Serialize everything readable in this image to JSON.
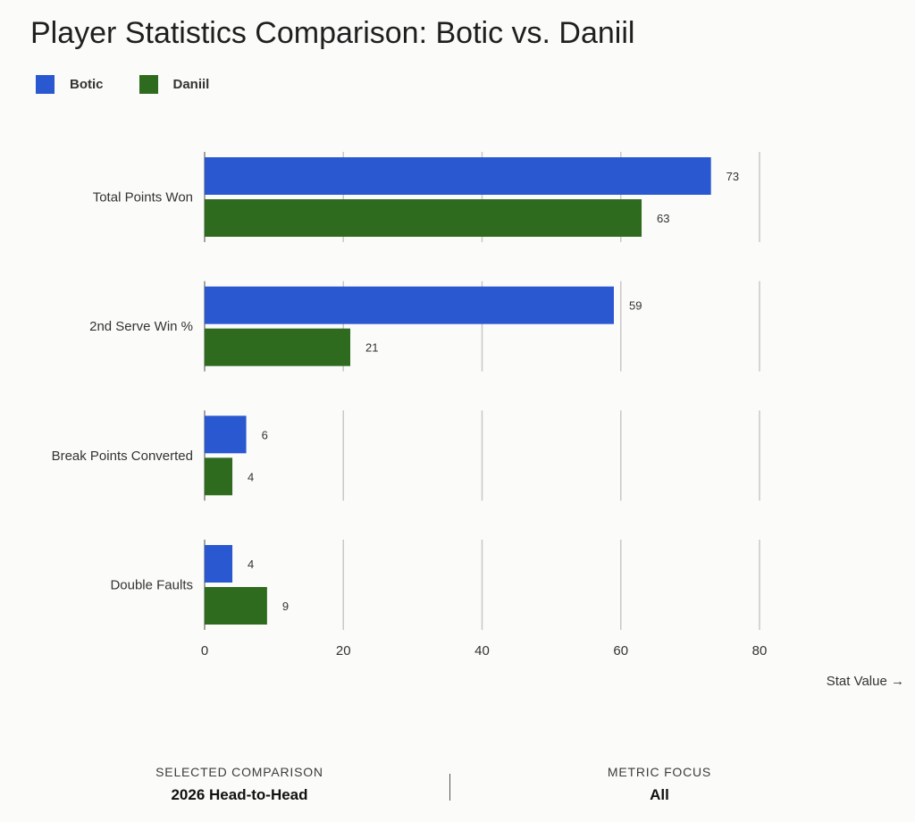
{
  "chart_data": {
    "type": "bar",
    "orientation": "horizontal",
    "title": "Player Statistics Comparison: Botic vs. Daniil",
    "categories": [
      "Total Points Won",
      "2nd Serve Win %",
      "Break Points Converted",
      "Double Faults"
    ],
    "series": [
      {
        "name": "Botic",
        "color": "#2a58d0",
        "values": [
          73,
          59,
          6,
          4
        ]
      },
      {
        "name": "Daniil",
        "color": "#2e6b1f",
        "values": [
          63,
          21,
          4,
          9
        ]
      }
    ],
    "xlim": [
      0,
      80
    ],
    "xticks": [
      "0",
      "20",
      "40",
      "60",
      "80"
    ],
    "xlabel": "Stat Value →",
    "grid": true,
    "legend": "top-left"
  },
  "footer": {
    "left_caption": "SELECTED COMPARISON",
    "left_value": "2026 Head-to-Head",
    "right_caption": "METRIC FOCUS",
    "right_value": "All"
  }
}
